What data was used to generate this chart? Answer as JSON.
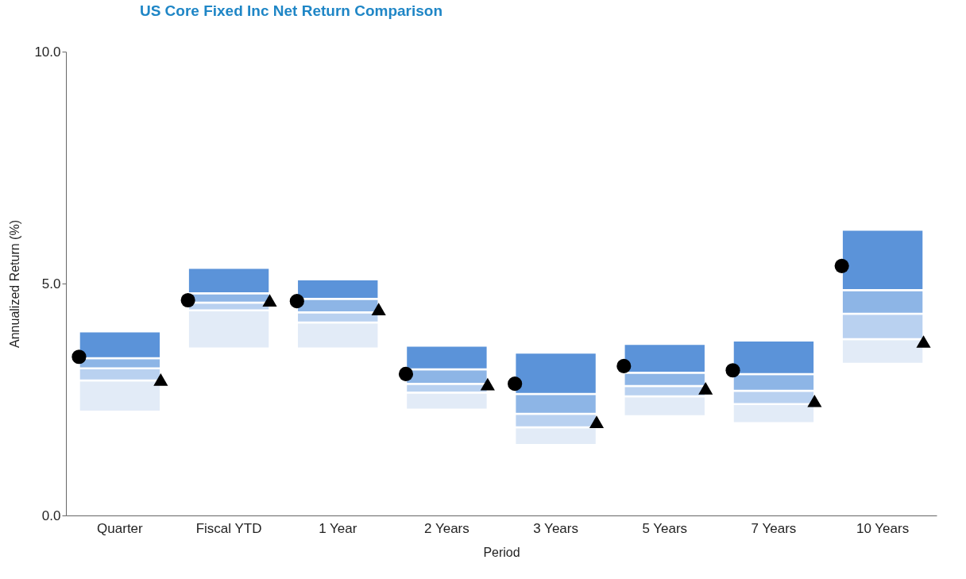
{
  "chart_data": {
    "type": "bar",
    "title": "US Core Fixed Inc Net Return Comparison",
    "xlabel": "Period",
    "ylabel": "Annualized Return (%)",
    "categories": [
      "Quarter",
      "Fiscal YTD",
      "1 Year",
      "2 Years",
      "3 Years",
      "5 Years",
      "7 Years",
      "10 Years"
    ],
    "series": [
      {
        "color": "#e2ebf7",
        "base": [
          2.24,
          3.6,
          3.6,
          2.28,
          1.52,
          2.14,
          1.99,
          3.27
        ],
        "values": [
          0.67,
          0.82,
          0.56,
          0.37,
          0.38,
          0.43,
          0.41,
          0.53
        ]
      },
      {
        "color": "#b9d1f0",
        "base": [
          2.91,
          4.42,
          4.16,
          2.65,
          1.9,
          2.57,
          2.4,
          3.8
        ],
        "values": [
          0.26,
          0.17,
          0.22,
          0.19,
          0.29,
          0.22,
          0.29,
          0.55
        ]
      },
      {
        "color": "#8db5e6",
        "base": [
          3.17,
          4.59,
          4.38,
          2.84,
          2.19,
          2.79,
          2.69,
          4.35
        ],
        "values": [
          0.22,
          0.2,
          0.29,
          0.31,
          0.43,
          0.29,
          0.36,
          0.51
        ]
      },
      {
        "color": "#5b93d9",
        "base": [
          3.39,
          4.79,
          4.67,
          3.15,
          2.62,
          3.08,
          3.05,
          4.86
        ],
        "values": [
          0.58,
          0.55,
          0.42,
          0.51,
          0.89,
          0.62,
          0.72,
          1.3
        ]
      },
      {
        "type": "scatter",
        "marker": "circle",
        "color": "#000000",
        "x": [
          "Quarter",
          "Fiscal YTD",
          "1 Year",
          "2 Years",
          "3 Years",
          "5 Years",
          "7 Years",
          "10 Years"
        ],
        "values": [
          3.42,
          4.64,
          4.62,
          3.05,
          2.84,
          3.22,
          3.13,
          5.38
        ]
      },
      {
        "type": "scatter",
        "marker": "triangle",
        "color": "#000000",
        "x": [
          "Quarter",
          "Fiscal YTD",
          "1 Year",
          "2 Years",
          "3 Years",
          "5 Years",
          "7 Years",
          "10 Years"
        ],
        "values": [
          2.93,
          4.64,
          4.45,
          2.83,
          2.02,
          2.74,
          2.47,
          3.75
        ]
      }
    ],
    "ylim": [
      0,
      10
    ],
    "yticks": [
      {
        "value": 0,
        "label": "0.0"
      },
      {
        "value": 5,
        "label": "5.0"
      },
      {
        "value": 10,
        "label": "10.0"
      }
    ],
    "grid": false
  }
}
